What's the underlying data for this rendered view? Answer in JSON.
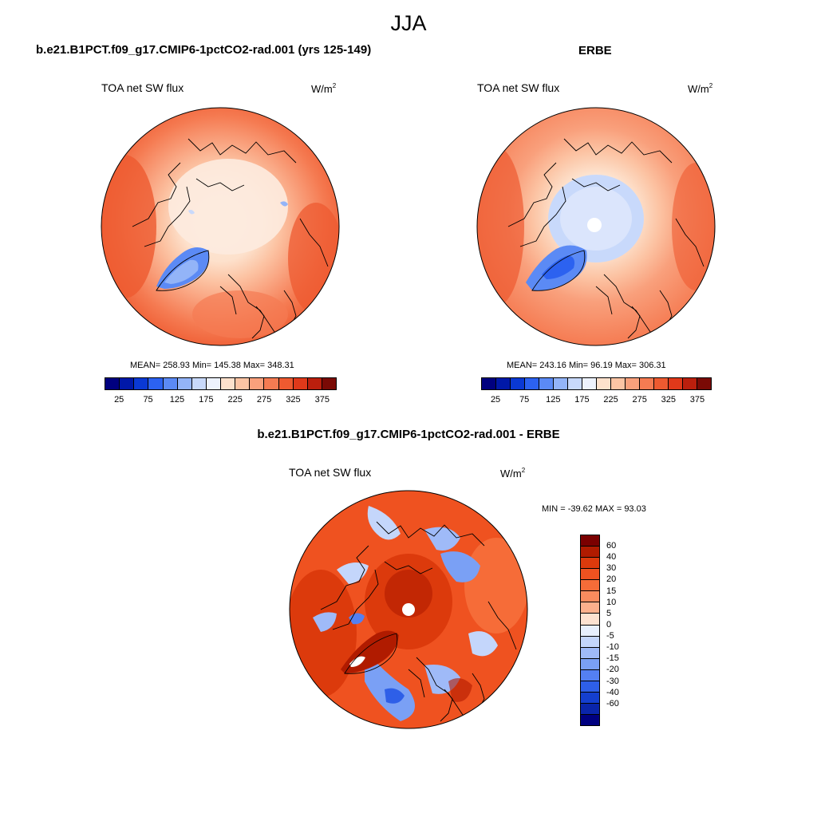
{
  "figure_title": "JJA",
  "panels": {
    "model": {
      "title": "b.e21.B1PCT.f09_g17.CMIP6-1pctCO2-rad.001 (yrs 125-149)",
      "variable": "TOA net SW flux",
      "units_base": "W/m",
      "units_exp": "2",
      "stats": "MEAN= 258.93  Min= 145.38  Max= 348.31"
    },
    "obs": {
      "title": "ERBE",
      "variable": "TOA net SW flux",
      "units_base": "W/m",
      "units_exp": "2",
      "stats": "MEAN= 243.16  Min=  96.19  Max= 306.31"
    },
    "diff": {
      "title": "b.e21.B1PCT.f09_g17.CMIP6-1pctCO2-rad.001 - ERBE",
      "variable": "TOA net SW flux",
      "units_base": "W/m",
      "units_exp": "2",
      "stats": "MIN = -39.62 MAX =  93.03"
    }
  },
  "abs_colorbar": {
    "colors": [
      "#00007f",
      "#0018a8",
      "#0a39d4",
      "#2c62f0",
      "#5b8af5",
      "#93b4f8",
      "#c8d9fb",
      "#edf2fd",
      "#fde1cc",
      "#fcc4a4",
      "#f9a07c",
      "#f57b52",
      "#ee5a30",
      "#e0391a",
      "#bb1f0d",
      "#7a0a05"
    ],
    "ticks": [
      "25",
      "75",
      "125",
      "175",
      "225",
      "275",
      "325",
      "375"
    ]
  },
  "diff_colorbar": {
    "colors": [
      "#7a0000",
      "#b01b00",
      "#dc3a0c",
      "#ef5220",
      "#f66c38",
      "#f98c5e",
      "#fcb08c",
      "#fde2d0",
      "#e8f0fd",
      "#c4d6fb",
      "#9fbaf8",
      "#7aa0f5",
      "#5480f2",
      "#2e5fe8",
      "#143fcf",
      "#0a25aa",
      "#000080"
    ],
    "ticks": [
      "60",
      "40",
      "30",
      "20",
      "15",
      "10",
      "5",
      "0",
      "-5",
      "-10",
      "-15",
      "-20",
      "-30",
      "-40",
      "-60"
    ]
  }
}
